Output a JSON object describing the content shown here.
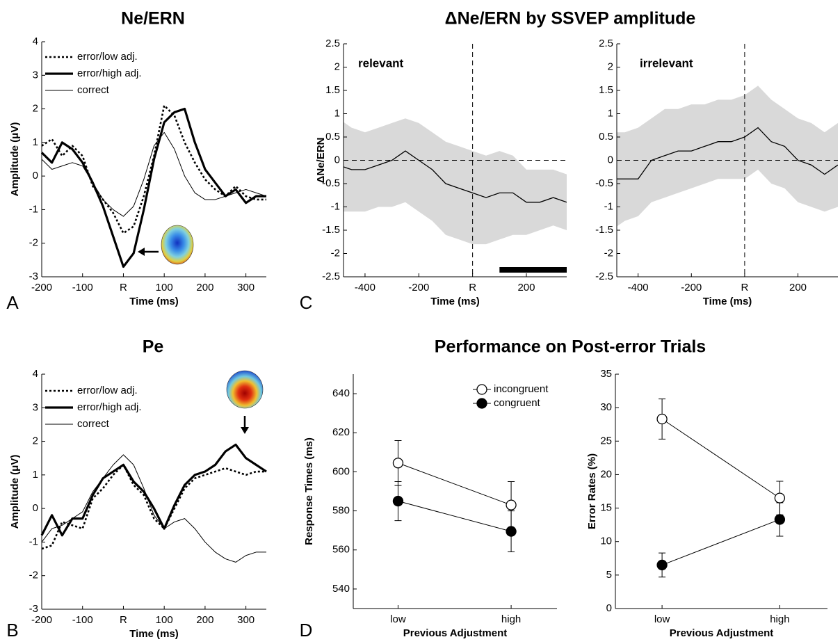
{
  "chart_data": [
    {
      "type": "line",
      "panel": "A",
      "title": "Ne/ERN",
      "xlabel": "Time (ms)",
      "ylabel": "Amplitude (μV)",
      "x": [
        -200,
        -175,
        -150,
        -125,
        -100,
        -75,
        -50,
        -25,
        0,
        25,
        50,
        75,
        100,
        125,
        150,
        175,
        200,
        225,
        250,
        275,
        300,
        325,
        350
      ],
      "series": [
        {
          "name": "error/low adj.",
          "color": "#000000",
          "style": "dotted",
          "values": [
            0.9,
            1.1,
            0.6,
            0.9,
            0.6,
            -0.3,
            -0.7,
            -1.1,
            -1.7,
            -1.5,
            -0.6,
            0.6,
            2.1,
            1.8,
            1.0,
            0.4,
            -0.1,
            -0.4,
            -0.6,
            -0.3,
            -0.6,
            -0.7,
            -0.7
          ]
        },
        {
          "name": "error/high adj.",
          "color": "#000000",
          "style": "thick",
          "values": [
            0.7,
            0.4,
            1.0,
            0.8,
            0.4,
            -0.2,
            -0.9,
            -1.8,
            -2.7,
            -2.3,
            -1.0,
            0.5,
            1.6,
            1.9,
            2.0,
            1.0,
            0.2,
            -0.2,
            -0.6,
            -0.4,
            -0.8,
            -0.6,
            -0.6
          ]
        },
        {
          "name": "correct",
          "color": "#000000",
          "style": "thin",
          "values": [
            0.5,
            0.2,
            0.3,
            0.4,
            0.3,
            -0.2,
            -0.7,
            -1.0,
            -1.2,
            -0.9,
            -0.1,
            0.9,
            1.3,
            0.8,
            0.0,
            -0.5,
            -0.7,
            -0.7,
            -0.6,
            -0.5,
            -0.4,
            -0.5,
            -0.6
          ]
        }
      ],
      "xlim": [
        -200,
        350
      ],
      "xticks": [
        -200,
        -100,
        {
          "value": 0,
          "label": "R"
        },
        100,
        200,
        300
      ],
      "ylim": [
        -3,
        4
      ],
      "yticks": [
        -3,
        -2,
        -1,
        0,
        1,
        2,
        3,
        4
      ]
    },
    {
      "type": "band",
      "panel": "C",
      "title": "ΔNe/ERN by SSVEP amplitude",
      "annotation": "relevant",
      "xlabel": "Time (ms)",
      "ylabel": "ΔNe/ERN",
      "x": [
        -500,
        -450,
        -400,
        -350,
        -300,
        -250,
        -200,
        -150,
        -100,
        -50,
        0,
        50,
        100,
        150,
        200,
        250,
        300,
        350
      ],
      "values": [
        -0.1,
        -0.2,
        -0.2,
        -0.1,
        0.0,
        0.2,
        0.0,
        -0.2,
        -0.5,
        -0.6,
        -0.7,
        -0.8,
        -0.7,
        -0.7,
        -0.9,
        -0.9,
        -0.8,
        -0.9
      ],
      "lower": [
        -1.1,
        -1.1,
        -1.1,
        -1.0,
        -1.0,
        -0.9,
        -1.1,
        -1.3,
        -1.6,
        -1.7,
        -1.8,
        -1.8,
        -1.7,
        -1.6,
        -1.6,
        -1.5,
        -1.4,
        -1.5
      ],
      "upper": [
        0.9,
        0.7,
        0.6,
        0.7,
        0.8,
        0.9,
        0.8,
        0.6,
        0.4,
        0.3,
        0.2,
        0.1,
        0.2,
        0.1,
        -0.2,
        -0.2,
        -0.2,
        -0.3
      ],
      "color": "#000000",
      "band_color": "#d9d9d9",
      "vline": 0,
      "hline": 0,
      "significance_x": [
        100,
        350
      ],
      "xlim": [
        -480,
        350
      ],
      "xticks": [
        -400,
        -200,
        {
          "value": 0,
          "label": "R"
        },
        200
      ],
      "ylim": [
        -2.5,
        2.5
      ],
      "yticks": [
        -2.5,
        -2,
        -1.5,
        -1,
        -0.5,
        0,
        0.5,
        1,
        1.5,
        2,
        2.5
      ]
    },
    {
      "type": "band",
      "annotation": "irrelevant",
      "xlabel": "Time (ms)",
      "x": [
        -500,
        -450,
        -400,
        -350,
        -300,
        -250,
        -200,
        -150,
        -100,
        -50,
        0,
        50,
        100,
        150,
        200,
        250,
        300,
        350
      ],
      "values": [
        -0.4,
        -0.4,
        -0.4,
        0.0,
        0.1,
        0.2,
        0.2,
        0.3,
        0.4,
        0.4,
        0.5,
        0.7,
        0.4,
        0.3,
        0.0,
        -0.1,
        -0.3,
        -0.1
      ],
      "lower": [
        -1.5,
        -1.3,
        -1.2,
        -0.9,
        -0.8,
        -0.7,
        -0.6,
        -0.5,
        -0.4,
        -0.4,
        -0.4,
        -0.2,
        -0.5,
        -0.6,
        -0.9,
        -1.0,
        -1.1,
        -1.0
      ],
      "upper": [
        0.6,
        0.6,
        0.7,
        0.9,
        1.1,
        1.1,
        1.2,
        1.2,
        1.3,
        1.3,
        1.4,
        1.6,
        1.3,
        1.1,
        0.9,
        0.8,
        0.6,
        0.8
      ],
      "color": "#000000",
      "band_color": "#d9d9d9",
      "vline": 0,
      "hline": 0,
      "xlim": [
        -480,
        350
      ],
      "xticks": [
        -400,
        -200,
        {
          "value": 0,
          "label": "R"
        },
        200
      ],
      "ylim": [
        -2.5,
        2.5
      ],
      "yticks": [
        -2.5,
        -2,
        -1.5,
        -1,
        -0.5,
        0,
        0.5,
        1,
        1.5,
        2,
        2.5
      ]
    },
    {
      "type": "line",
      "panel": "B",
      "title": "Pe",
      "xlabel": "Time (ms)",
      "ylabel": "Amplitude (μV)",
      "x": [
        -200,
        -175,
        -150,
        -125,
        -100,
        -75,
        -50,
        -25,
        0,
        25,
        50,
        75,
        100,
        125,
        150,
        175,
        200,
        225,
        250,
        275,
        300,
        325,
        350
      ],
      "series": [
        {
          "name": "error/low adj.",
          "color": "#000000",
          "style": "dotted",
          "values": [
            -1.2,
            -1.1,
            -0.4,
            -0.5,
            -0.6,
            0.3,
            0.6,
            1.0,
            1.3,
            0.7,
            0.4,
            -0.3,
            -0.6,
            0.0,
            0.6,
            0.9,
            1.0,
            1.1,
            1.2,
            1.1,
            1.0,
            1.1,
            1.1
          ]
        },
        {
          "name": "error/high adj.",
          "color": "#000000",
          "style": "thick",
          "values": [
            -0.8,
            -0.2,
            -0.8,
            -0.3,
            -0.3,
            0.4,
            0.9,
            1.1,
            1.3,
            0.8,
            0.5,
            0.0,
            -0.6,
            0.1,
            0.7,
            1.0,
            1.1,
            1.3,
            1.7,
            1.9,
            1.5,
            1.3,
            1.1
          ]
        },
        {
          "name": "correct",
          "color": "#000000",
          "style": "thin",
          "values": [
            -1.0,
            -0.6,
            -0.5,
            -0.3,
            -0.1,
            0.5,
            0.9,
            1.3,
            1.6,
            1.3,
            0.6,
            -0.2,
            -0.6,
            -0.4,
            -0.3,
            -0.6,
            -1.0,
            -1.3,
            -1.5,
            -1.6,
            -1.4,
            -1.3,
            -1.3
          ]
        }
      ],
      "xlim": [
        -200,
        350
      ],
      "xticks": [
        -200,
        -100,
        {
          "value": 0,
          "label": "R"
        },
        100,
        200,
        300
      ],
      "ylim": [
        -3,
        4
      ],
      "yticks": [
        -3,
        -2,
        -1,
        0,
        1,
        2,
        3,
        4
      ]
    },
    {
      "type": "errorline",
      "panel": "D",
      "title": "Performance on Post-error Trials",
      "xlabel": "Previous Adjustment",
      "ylabel": "Response Times (ms)",
      "categories": [
        "low",
        "high"
      ],
      "series": [
        {
          "name": "incongruent",
          "color": "#000000",
          "marker_fill": "#ffffff",
          "values": [
            604.5,
            583
          ],
          "errors": [
            11.5,
            12
          ]
        },
        {
          "name": "congruent",
          "color": "#000000",
          "marker_fill": "#000000",
          "values": [
            585,
            569.5
          ],
          "errors": [
            10,
            10.5
          ]
        }
      ],
      "ylim": [
        530,
        650
      ],
      "yticks": [
        540,
        560,
        580,
        600,
        620,
        640
      ]
    },
    {
      "type": "errorline",
      "xlabel": "Previous Adjustment",
      "ylabel": "Error Rates (%)",
      "categories": [
        "low",
        "high"
      ],
      "series": [
        {
          "color": "#000000",
          "marker_fill": "#ffffff",
          "values": [
            28.3,
            16.5
          ],
          "errors": [
            3,
            2.5
          ]
        },
        {
          "color": "#000000",
          "marker_fill": "#000000",
          "values": [
            6.5,
            13.3
          ],
          "errors": [
            1.8,
            2.5
          ]
        }
      ],
      "ylim": [
        0,
        35
      ],
      "yticks": [
        0,
        5,
        10,
        15,
        20,
        25,
        30,
        35
      ]
    }
  ]
}
